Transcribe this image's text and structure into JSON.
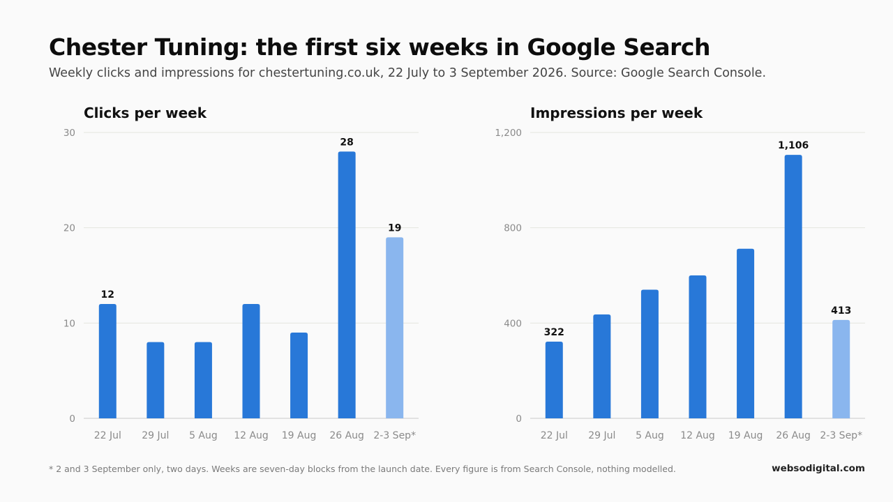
{
  "header": {
    "title": "Chester Tuning: the first six weeks in Google Search",
    "subtitle": "Weekly clicks and impressions for chestertuning.co.uk, 22 July to 3 September 2026. Source: Google Search Console."
  },
  "footer": {
    "footnote": "* 2 and 3 September only, two days. Weeks are seven-day blocks from the launch date. Every figure is from Search Console, nothing modelled.",
    "brand": "websodigital.com"
  },
  "colors": {
    "bar": "#2878d8",
    "bar_partial": "#8ab6ee"
  },
  "chart_data": [
    {
      "type": "bar",
      "title": "Clicks per week",
      "categories": [
        "22 Jul",
        "29 Jul",
        "5 Aug",
        "12 Aug",
        "19 Aug",
        "26 Aug",
        "2-3 Sep*"
      ],
      "values": [
        12,
        8,
        8,
        12,
        9,
        28,
        19
      ],
      "partial": [
        false,
        false,
        false,
        false,
        false,
        false,
        true
      ],
      "labeled": [
        true,
        false,
        false,
        false,
        false,
        true,
        true
      ],
      "ylim": [
        0,
        30
      ],
      "yticks": [
        0,
        10,
        20,
        30
      ],
      "ytick_labels": [
        "0",
        "10",
        "20",
        "30"
      ],
      "data_labels": [
        "12",
        "8",
        "8",
        "12",
        "9",
        "28",
        "19"
      ],
      "grid": true,
      "xlabel": "",
      "ylabel": ""
    },
    {
      "type": "bar",
      "title": "Impressions per week",
      "categories": [
        "22 Jul",
        "29 Jul",
        "5 Aug",
        "12 Aug",
        "19 Aug",
        "26 Aug",
        "2-3 Sep*"
      ],
      "values": [
        322,
        436,
        540,
        600,
        712,
        1106,
        413
      ],
      "partial": [
        false,
        false,
        false,
        false,
        false,
        false,
        true
      ],
      "labeled": [
        true,
        false,
        false,
        false,
        false,
        true,
        true
      ],
      "ylim": [
        0,
        1200
      ],
      "yticks": [
        0,
        400,
        800,
        1200
      ],
      "ytick_labels": [
        "0",
        "400",
        "800",
        "1,200"
      ],
      "data_labels": [
        "322",
        "436",
        "540",
        "600",
        "712",
        "1,106",
        "413"
      ],
      "grid": true,
      "xlabel": "",
      "ylabel": ""
    }
  ]
}
